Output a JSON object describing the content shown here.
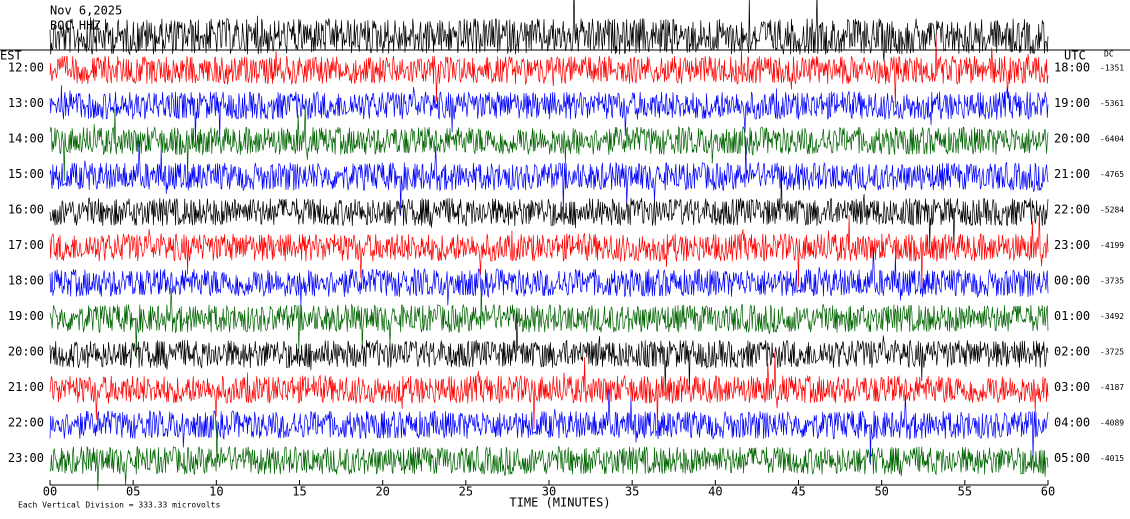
{
  "header": {
    "date": "Nov 6,2025",
    "station": "BOC HHZ",
    "left_zone": "EST",
    "right_zone": "UTC",
    "right_column": "DC"
  },
  "rows": [
    {
      "est": "12:00",
      "utc": "18:00",
      "dc": "-1351",
      "color": "#ff0000"
    },
    {
      "est": "13:00",
      "utc": "19:00",
      "dc": "-5361",
      "color": "#0000ff"
    },
    {
      "est": "14:00",
      "utc": "20:00",
      "dc": "-6404",
      "color": "#006400"
    },
    {
      "est": "15:00",
      "utc": "21:00",
      "dc": "-4765",
      "color": "#0000ff"
    },
    {
      "est": "16:00",
      "utc": "22:00",
      "dc": "-5284",
      "color": "#000000"
    },
    {
      "est": "17:00",
      "utc": "23:00",
      "dc": "-4199",
      "color": "#ff0000"
    },
    {
      "est": "18:00",
      "utc": "00:00",
      "dc": "-3735",
      "color": "#0000ff"
    },
    {
      "est": "19:00",
      "utc": "01:00",
      "dc": "-3492",
      "color": "#006400"
    },
    {
      "est": "20:00",
      "utc": "02:00",
      "dc": "-3725",
      "color": "#000000"
    },
    {
      "est": "21:00",
      "utc": "03:00",
      "dc": "-4187",
      "color": "#ff0000"
    },
    {
      "est": "22:00",
      "utc": "04:00",
      "dc": "-4089",
      "color": "#0000ff"
    },
    {
      "est": "23:00",
      "utc": "05:00",
      "dc": "-4015",
      "color": "#006400"
    }
  ],
  "axis": {
    "ticks": [
      "00",
      "05",
      "10",
      "15",
      "20",
      "25",
      "30",
      "35",
      "40",
      "45",
      "50",
      "55",
      "60"
    ],
    "label": "TIME (MINUTES)"
  },
  "footer": "Each Vertical Division =  333.33 microvolts"
}
